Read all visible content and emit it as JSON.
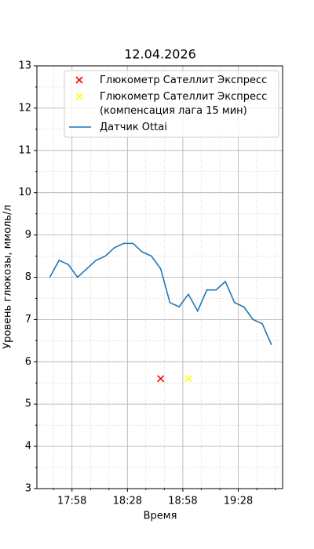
{
  "chart_data": {
    "type": "line",
    "title": "12.04.2026",
    "xlabel": "Время",
    "ylabel": "Уровень глюкозы, ммоль/л",
    "xlim": [
      "17:39",
      "19:52"
    ],
    "xticks": [
      "17:58",
      "18:28",
      "18:58",
      "19:28"
    ],
    "x_minor_ticks": [
      "17:48",
      "18:08",
      "18:18",
      "18:38",
      "18:48",
      "19:08",
      "19:18",
      "19:38",
      "19:48"
    ],
    "ylim": [
      3,
      13
    ],
    "yticks": [
      3,
      4,
      5,
      6,
      7,
      8,
      9,
      10,
      11,
      12,
      13
    ],
    "y_minor_ticks": [
      3.5,
      4.5,
      5.5,
      6.5,
      7.5,
      8.5,
      9.5,
      10.5,
      11.5,
      12.5
    ],
    "grid": true,
    "legend": "upper right",
    "series": [
      {
        "name": "Глюкометр Сателлит Экспресс",
        "kind": "scatter",
        "marker": "x",
        "color": "#ff0000",
        "x": [
          "18:46"
        ],
        "values": [
          5.6
        ]
      },
      {
        "name": "Глюкометр Сателлит Экспресс\n(компенсация лага 15 мин)",
        "kind": "scatter",
        "marker": "x",
        "color": "#ffff00",
        "x": [
          "19:01"
        ],
        "values": [
          5.6
        ]
      },
      {
        "name": "Датчик Ottai",
        "kind": "line",
        "color": "#1f77b4",
        "x": [
          "17:46",
          "17:51",
          "17:56",
          "18:01",
          "18:06",
          "18:11",
          "18:16",
          "18:21",
          "18:26",
          "18:31",
          "18:36",
          "18:41",
          "18:46",
          "18:51",
          "18:56",
          "19:01",
          "19:06",
          "19:11",
          "19:16",
          "19:21",
          "19:26",
          "19:31",
          "19:36",
          "19:41",
          "19:46"
        ],
        "values": [
          8.0,
          8.4,
          8.3,
          8.0,
          8.2,
          8.4,
          8.5,
          8.7,
          8.8,
          8.8,
          8.6,
          8.5,
          8.2,
          7.4,
          7.3,
          7.6,
          7.2,
          7.7,
          7.7,
          7.9,
          7.4,
          7.3,
          7.0,
          6.9,
          6.4
        ]
      }
    ]
  }
}
